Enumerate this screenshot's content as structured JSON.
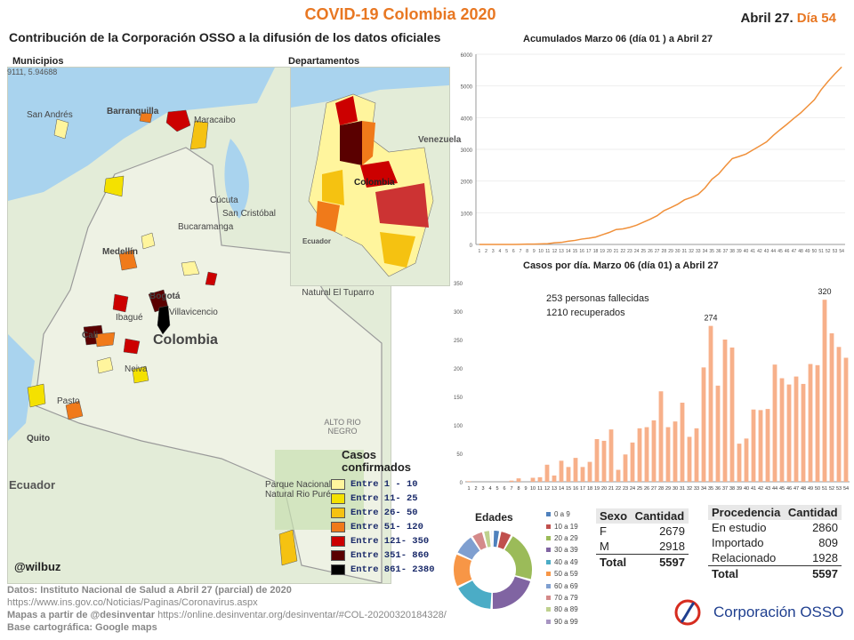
{
  "header": {
    "title": "COVID-19 Colombia 2020",
    "date": "Abril 27.",
    "day": "Día 54",
    "subtitle": "Contribución de la Corporación OSSO a la difusión de los datos oficiales"
  },
  "map_municipios": {
    "label": "Municipios",
    "coord": "9111, 5.94688",
    "handle": "@wilbuz",
    "cities": [
      "San Andrés",
      "Barranquilla",
      "Maracaibo",
      "Medellín",
      "Bogotá",
      "Cali",
      "Pasto",
      "Quito",
      "Ecuador",
      "Colombia",
      "Cúcuta",
      "San Cristóbal",
      "Bucaramanga",
      "Ibagué",
      "Neiva",
      "Villavicencio",
      "Natural El Tuparro",
      "ALTO RIO NEGRO",
      "Parque Nacional Natural Rio Puré"
    ]
  },
  "map_departamentos": {
    "label": "Departamentos",
    "cities": [
      "Venezuela",
      "Colombia",
      "Ecuador"
    ]
  },
  "legend": {
    "title": "Casos confirmados",
    "items": [
      {
        "label": "Entre 1 - 10",
        "color": "#fff59d"
      },
      {
        "label": "Entre 11- 25",
        "color": "#f4e100"
      },
      {
        "label": "Entre 26- 50",
        "color": "#f5c211"
      },
      {
        "label": "Entre 51- 120",
        "color": "#f07a1a"
      },
      {
        "label": "Entre 121- 350",
        "color": "#cc0000"
      },
      {
        "label": "Entre 351- 860",
        "color": "#5a0000"
      },
      {
        "label": "Entre 861- 2380",
        "color": "#000000"
      }
    ]
  },
  "chart_data": [
    {
      "type": "line",
      "title": "Acumulados  Marzo 06 (día 01 ) a Abril 27",
      "ylim": [
        0,
        6000
      ],
      "yticks": [
        0,
        1000,
        2000,
        3000,
        4000,
        5000,
        6000
      ],
      "x": [
        1,
        2,
        3,
        4,
        5,
        6,
        7,
        8,
        9,
        10,
        11,
        12,
        13,
        14,
        15,
        16,
        17,
        18,
        19,
        20,
        21,
        22,
        23,
        24,
        25,
        26,
        27,
        28,
        29,
        30,
        31,
        32,
        33,
        34,
        35,
        36,
        37,
        38,
        39,
        40,
        41,
        42,
        43,
        44,
        45,
        46,
        47,
        48,
        49,
        50,
        51,
        52,
        53,
        54
      ],
      "values": [
        1,
        1,
        1,
        1,
        1,
        1,
        3,
        9,
        9,
        16,
        24,
        54,
        65,
        102,
        128,
        170,
        196,
        231,
        306,
        378,
        470,
        491,
        539,
        608,
        702,
        798,
        906,
        1065,
        1161,
        1267,
        1406,
        1485,
        1579,
        1780,
        2054,
        2223,
        2473,
        2709,
        2776,
        2852,
        2979,
        3105,
        3233,
        3439,
        3621,
        3792,
        3977,
        4149,
        4356,
        4561,
        4881,
        5142,
        5379,
        5597
      ],
      "color": "#f0903a"
    },
    {
      "type": "bar",
      "title": "Casos por día. Marzo 06 (día 01) a Abril 27",
      "ylim": [
        0,
        350
      ],
      "yticks": [
        0,
        50,
        100,
        150,
        200,
        250,
        300,
        350
      ],
      "categories": [
        "1",
        "2",
        "3",
        "4",
        "5",
        "6",
        "7",
        "8",
        "9",
        "10",
        "11",
        "12",
        "13",
        "14",
        "15",
        "16",
        "17",
        "18",
        "19",
        "20",
        "21",
        "22",
        "23",
        "24",
        "25",
        "26",
        "27",
        "28",
        "29",
        "30",
        "31",
        "32",
        "33",
        "34",
        "35",
        "36",
        "37",
        "38",
        "39",
        "40",
        "41",
        "42",
        "43",
        "44",
        "45",
        "46",
        "47",
        "48",
        "49",
        "50",
        "51",
        "52",
        "53",
        "54"
      ],
      "values": [
        1,
        0,
        0,
        0,
        0,
        0,
        2,
        6,
        0,
        7,
        8,
        30,
        11,
        37,
        26,
        42,
        26,
        35,
        75,
        72,
        92,
        21,
        48,
        69,
        94,
        96,
        108,
        159,
        96,
        106,
        139,
        79,
        94,
        201,
        274,
        169,
        250,
        236,
        67,
        76,
        127,
        126,
        128,
        206,
        182,
        171,
        185,
        172,
        207,
        205,
        320,
        261,
        237,
        218
      ],
      "color": "#f7b08a",
      "annotations": [
        {
          "x": "35",
          "label": "274"
        },
        {
          "x": "51",
          "label": "320"
        }
      ],
      "notes": [
        "253 personas fallecidas",
        "1210 recuperados"
      ]
    },
    {
      "type": "pie",
      "title": "Edades",
      "categories": [
        "0 a 9",
        "10 a 19",
        "20 a 29",
        "30 a 39",
        "40 a 49",
        "50 a 59",
        "60 a 69",
        "70 a 79",
        "80 a 89",
        "90 a 99"
      ],
      "values": [
        3,
        5,
        21,
        21,
        17,
        14,
        9,
        5,
        3,
        1
      ],
      "colors": [
        "#4f81bd",
        "#c0504d",
        "#9bbb59",
        "#8064a2",
        "#4bacc6",
        "#f79646",
        "#7f9fd0",
        "#d48a8a",
        "#bfd18e",
        "#a895c2"
      ]
    }
  ],
  "sexo": {
    "headers": [
      "Sexo",
      "Cantidad"
    ],
    "rows": [
      [
        "F",
        "2679"
      ],
      [
        "M",
        "2918"
      ]
    ],
    "total": [
      "Total",
      "5597"
    ]
  },
  "procedencia": {
    "headers": [
      "Procedencia",
      "Cantidad"
    ],
    "rows": [
      [
        "En estudio",
        "2860"
      ],
      [
        "Importado",
        "809"
      ],
      [
        "Relacionado",
        "1928"
      ]
    ],
    "total": [
      "Total",
      "5597"
    ]
  },
  "footer": {
    "line1": "Datos: Instituto Nacional de Salud a Abril 27 (parcial) de 2020",
    "line2": "https://www.ins.gov.co/Noticias/Paginas/Coronavirus.aspx",
    "line3a": "Mapas a partir de @desinventar",
    "line3b": "https://online.desinventar.org/desinventar/#COL-20200320184328/",
    "line4": "Base cartográfica: Google  maps"
  },
  "brand": {
    "name": "Corporación OSSO"
  }
}
